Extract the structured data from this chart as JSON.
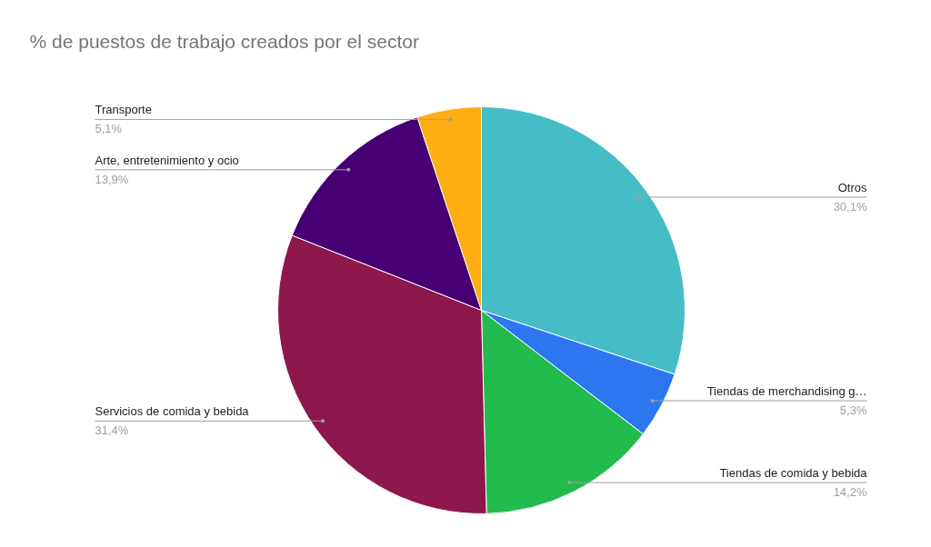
{
  "chart_data": {
    "type": "pie",
    "title": "% de puestos de trabajo creados por el sector",
    "categories": [
      "Otros",
      "Tiendas de merchandising g…",
      "Tiendas de comida y bebida",
      "Servicios de comida y bebida",
      "Arte, entretenimiento y ocio",
      "Transporte"
    ],
    "values": [
      30.1,
      5.3,
      14.2,
      31.4,
      13.9,
      5.1
    ],
    "value_labels": [
      "30,1%",
      "5,3%",
      "14,2%",
      "31,4%",
      "13,9%",
      "5,1%"
    ],
    "colors": [
      "#46bdc6",
      "#2c77f0",
      "#22bb4d",
      "#8e174b",
      "#460073",
      "#ffae13"
    ]
  }
}
